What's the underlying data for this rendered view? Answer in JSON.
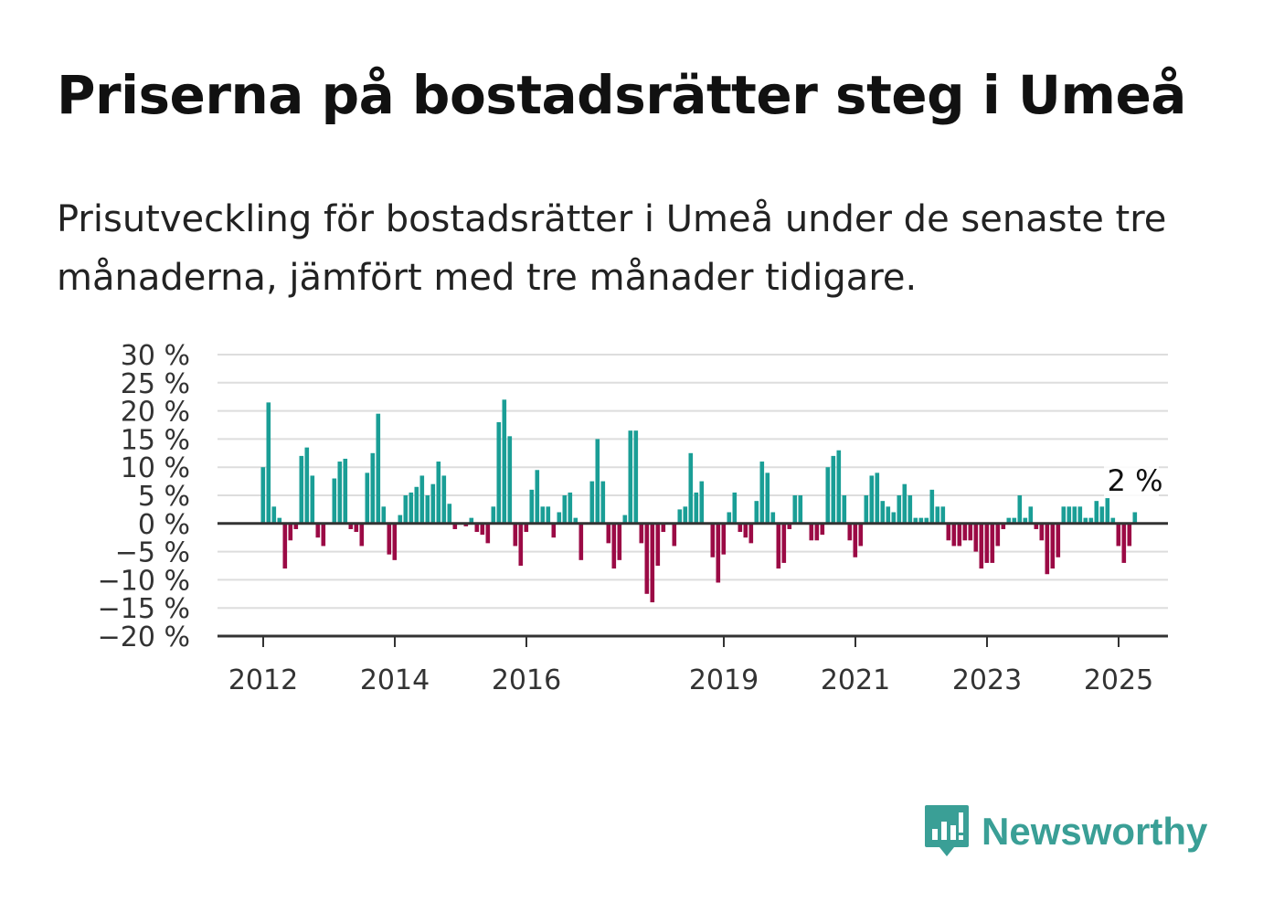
{
  "title": "Priserna på bostadsrätter steg i Umeå",
  "subtitle": "Prisutveckling för bostadsrätter i Umeå under de senaste tre månaderna, jämfört med tre månader tidigare.",
  "brand": {
    "name": "Newsworthy",
    "icon": "bar-chart-logo-icon",
    "color": "#3a9f96"
  },
  "colors": {
    "positive": "#1a9e96",
    "negative": "#9b0a45",
    "grid": "#dddddd",
    "zero_line": "#333333",
    "axis": "#333333"
  },
  "chart_data": {
    "type": "bar",
    "x_start": "2012-01",
    "x_step": "month",
    "x_ticks": [
      {
        "label": "2012",
        "date": "2012-01"
      },
      {
        "label": "2014",
        "date": "2014-01"
      },
      {
        "label": "2016",
        "date": "2016-01"
      },
      {
        "label": "2019",
        "date": "2019-01"
      },
      {
        "label": "2021",
        "date": "2021-01"
      },
      {
        "label": "2023",
        "date": "2023-01"
      },
      {
        "label": "2025",
        "date": "2025-01"
      }
    ],
    "y_ticks": [
      {
        "value": 30,
        "label": "30 %"
      },
      {
        "value": 25,
        "label": "25 %"
      },
      {
        "value": 20,
        "label": "20 %"
      },
      {
        "value": 15,
        "label": "15 %"
      },
      {
        "value": 10,
        "label": "10 %"
      },
      {
        "value": 5,
        "label": "5 %"
      },
      {
        "value": 0,
        "label": "0 %"
      },
      {
        "value": -5,
        "label": "−5 %"
      },
      {
        "value": -10,
        "label": "−10 %"
      },
      {
        "value": -15,
        "label": "−15 %"
      },
      {
        "value": -20,
        "label": "−20 %"
      }
    ],
    "ylim": [
      -20,
      30
    ],
    "grid": true,
    "annotation": {
      "label": "2 %",
      "value": 2
    },
    "values": [
      10,
      21.5,
      3,
      1,
      -8,
      -3,
      -1,
      12,
      13.5,
      8.5,
      -2.5,
      -4,
      null,
      8,
      11,
      11.5,
      -1,
      -1.5,
      -4,
      9,
      12.5,
      19.5,
      3,
      -5.5,
      -6.5,
      1.5,
      5,
      5.5,
      6.5,
      8.5,
      5,
      7,
      11,
      8.5,
      3.5,
      -1,
      null,
      -0.5,
      1,
      -1.5,
      -2,
      -3.5,
      3,
      18,
      22,
      15.5,
      -4,
      -7.5,
      -1.5,
      6,
      9.5,
      3,
      3,
      -2.5,
      2,
      5,
      5.5,
      1,
      -6.5,
      null,
      7.5,
      15,
      7.5,
      -3.5,
      -8,
      -6.5,
      1.5,
      16.5,
      16.5,
      -3.5,
      -12.5,
      -14,
      -7.5,
      -1.5,
      null,
      -4,
      2.5,
      3,
      12.5,
      5.5,
      7.5,
      null,
      -6,
      -10.5,
      -5.5,
      2,
      5.5,
      -1.5,
      -2.5,
      -3.5,
      4,
      11,
      9,
      2,
      -8,
      -7,
      -1,
      5,
      5,
      null,
      -3,
      -3,
      -2,
      10,
      12,
      13,
      5,
      -3,
      -6,
      -4,
      5,
      8.5,
      9,
      4,
      3,
      2,
      5,
      7,
      5,
      1,
      1,
      1,
      6,
      3,
      3,
      -3,
      -4,
      -4,
      -3,
      -3,
      -5,
      -8,
      -7,
      -7,
      -4,
      -1,
      1,
      1,
      5,
      1,
      3,
      -1,
      -3,
      -9,
      -8,
      -6,
      3,
      3,
      3,
      3,
      1,
      1,
      4,
      3,
      4.5,
      1,
      -4,
      -7,
      -4,
      2
    ]
  }
}
